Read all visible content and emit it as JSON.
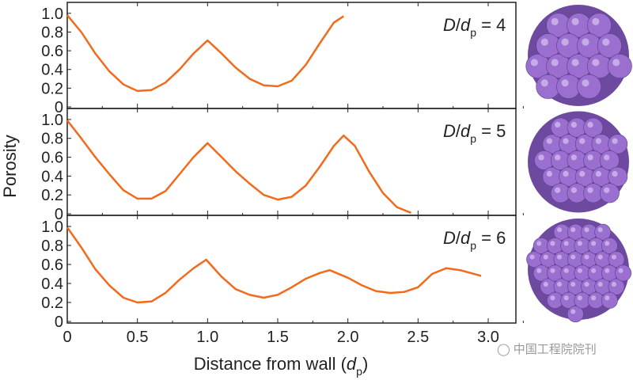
{
  "chart_data": {
    "type": "line",
    "xlabel": "Distance from wall (",
    "xlabel_italic": "d",
    "xlabel_sub": "p",
    "xlabel_end": ")",
    "ylabel": "Porosity",
    "xlim": [
      0,
      3.2
    ],
    "ylim": [
      0,
      1.1
    ],
    "x_ticks": [
      "0",
      "0.5",
      "1.0",
      "1.5",
      "2.0",
      "2.5",
      "3.0"
    ],
    "x_tick_values": [
      0,
      0.5,
      1.0,
      1.5,
      2.0,
      2.5,
      3.0
    ],
    "y_ticks": [
      "0",
      "0.2",
      "0.4",
      "0.6",
      "0.8",
      "1.0"
    ],
    "y_tick_values": [
      0,
      0.2,
      0.4,
      0.6,
      0.8,
      1.0
    ],
    "line_color": "#f26a1b",
    "panels": [
      {
        "label_D": "D",
        "label_slash": "/",
        "label_d": "d",
        "label_sub": "p",
        "label_val": " = 4",
        "x": [
          0,
          0.1,
          0.2,
          0.3,
          0.4,
          0.5,
          0.6,
          0.7,
          0.8,
          0.9,
          1.0,
          1.1,
          1.2,
          1.3,
          1.4,
          1.5,
          1.6,
          1.7,
          1.8,
          1.9,
          1.97
        ],
        "y": [
          0.98,
          0.8,
          0.57,
          0.38,
          0.24,
          0.17,
          0.18,
          0.26,
          0.4,
          0.57,
          0.71,
          0.57,
          0.42,
          0.3,
          0.23,
          0.22,
          0.28,
          0.45,
          0.68,
          0.9,
          0.97
        ]
      },
      {
        "label_D": "D",
        "label_slash": "/",
        "label_d": "d",
        "label_sub": "p",
        "label_val": " = 5",
        "x": [
          0,
          0.1,
          0.2,
          0.3,
          0.4,
          0.5,
          0.6,
          0.7,
          0.8,
          0.9,
          1.0,
          1.1,
          1.2,
          1.3,
          1.4,
          1.5,
          1.6,
          1.7,
          1.8,
          1.9,
          1.97,
          2.05,
          2.15,
          2.25,
          2.35,
          2.45
        ],
        "y": [
          0.99,
          0.8,
          0.6,
          0.42,
          0.25,
          0.16,
          0.16,
          0.24,
          0.42,
          0.6,
          0.75,
          0.6,
          0.45,
          0.32,
          0.2,
          0.15,
          0.18,
          0.3,
          0.5,
          0.72,
          0.83,
          0.72,
          0.45,
          0.22,
          0.07,
          0.01
        ]
      },
      {
        "label_D": "D",
        "label_slash": "/",
        "label_d": "d",
        "label_sub": "p",
        "label_val": " = 6",
        "x": [
          0,
          0.1,
          0.2,
          0.3,
          0.4,
          0.5,
          0.6,
          0.7,
          0.8,
          0.9,
          0.99,
          1.1,
          1.2,
          1.3,
          1.4,
          1.5,
          1.6,
          1.7,
          1.8,
          1.87,
          2.0,
          2.1,
          2.2,
          2.3,
          2.4,
          2.5,
          2.6,
          2.7,
          2.8,
          2.95
        ],
        "y": [
          0.99,
          0.78,
          0.55,
          0.38,
          0.25,
          0.2,
          0.21,
          0.3,
          0.44,
          0.56,
          0.65,
          0.47,
          0.34,
          0.28,
          0.25,
          0.28,
          0.36,
          0.45,
          0.51,
          0.54,
          0.46,
          0.38,
          0.32,
          0.3,
          0.31,
          0.36,
          0.5,
          0.56,
          0.54,
          0.48
        ]
      }
    ],
    "sphere_color": "#9b6fd0"
  },
  "watermark": "中国工程院院刊"
}
